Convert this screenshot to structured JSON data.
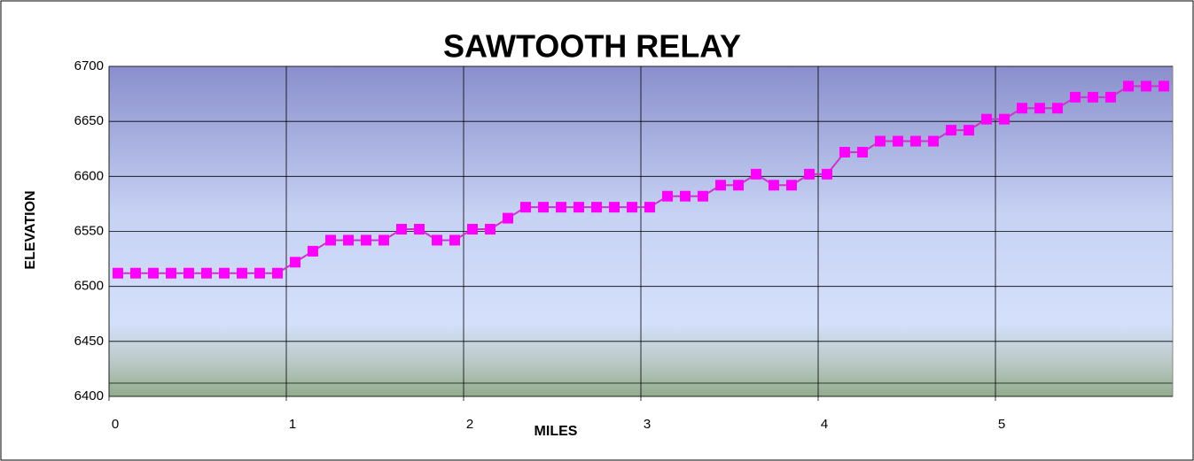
{
  "chart_data": {
    "type": "line",
    "title": "SAWTOOTH RELAY",
    "xlabel": "MILES",
    "ylabel": "ELEVATION",
    "x": [
      0.05,
      0.15,
      0.25,
      0.35,
      0.45,
      0.55,
      0.65,
      0.75,
      0.85,
      0.95,
      1.05,
      1.15,
      1.25,
      1.35,
      1.45,
      1.55,
      1.65,
      1.75,
      1.85,
      1.95,
      2.05,
      2.15,
      2.25,
      2.35,
      2.45,
      2.55,
      2.65,
      2.75,
      2.85,
      2.95,
      3.05,
      3.15,
      3.25,
      3.35,
      3.45,
      3.55,
      3.65,
      3.75,
      3.85,
      3.95,
      4.05,
      4.15,
      4.25,
      4.35,
      4.45,
      4.55,
      4.65,
      4.75,
      4.85,
      4.95,
      5.05,
      5.15,
      5.25,
      5.35,
      5.45,
      5.55,
      5.65,
      5.75,
      5.85,
      5.95
    ],
    "values": [
      6512,
      6512,
      6512,
      6512,
      6512,
      6512,
      6512,
      6512,
      6512,
      6512,
      6522,
      6532,
      6542,
      6542,
      6542,
      6542,
      6552,
      6552,
      6542,
      6542,
      6552,
      6552,
      6562,
      6572,
      6572,
      6572,
      6572,
      6572,
      6572,
      6572,
      6572,
      6582,
      6582,
      6582,
      6592,
      6592,
      6602,
      6592,
      6592,
      6602,
      6602,
      6622,
      6622,
      6632,
      6632,
      6632,
      6632,
      6642,
      6642,
      6652,
      6652,
      6662,
      6662,
      6662,
      6672,
      6672,
      6672,
      6682,
      6682,
      6682
    ],
    "color": "#ff00ff",
    "xlim": [
      0,
      6
    ],
    "ylim": [
      6400,
      6700
    ],
    "xticks": [
      0,
      1,
      2,
      3,
      4,
      5
    ],
    "yticks": [
      6400,
      6450,
      6500,
      6550,
      6600,
      6650,
      6700
    ],
    "grid": true
  }
}
